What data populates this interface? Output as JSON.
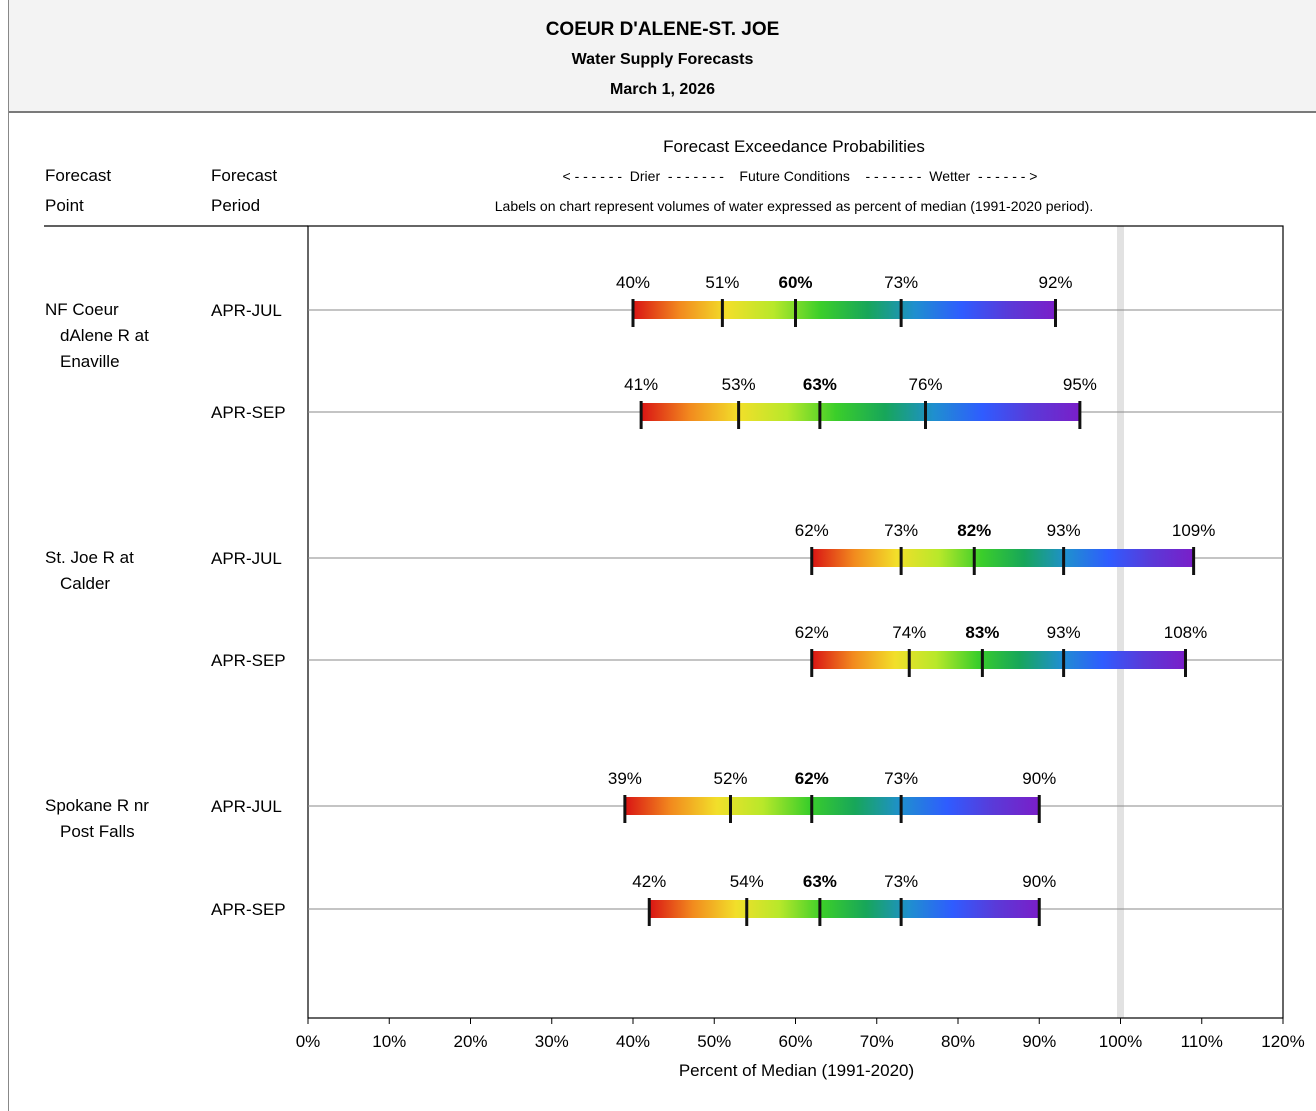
{
  "header": {
    "title": "COEUR D'ALENE-ST. JOE",
    "subtitle": "Water Supply Forecasts",
    "date": "March 1, 2026"
  },
  "columns": {
    "point_line1": "Forecast",
    "point_line2": "Point",
    "period_line1": "Forecast",
    "period_line2": "Period",
    "exceedance_title": "Forecast Exceedance Probabilities",
    "direction_legend": "< - - - - - -  Drier  - - - - - - -    Future Conditions    - - - - - - -  Wetter  - - - - - - >",
    "note": "Labels on chart represent volumes of water expressed as percent of median (1991-2020 period)."
  },
  "points": [
    {
      "name_lines": [
        "NF Coeur",
        "dAlene R at",
        "Enaville"
      ]
    },
    {
      "name_lines": [
        "St. Joe R at",
        "Calder"
      ]
    },
    {
      "name_lines": [
        "Spokane R nr",
        "Post Falls"
      ]
    }
  ],
  "chart_data": {
    "type": "bar",
    "xlabel": "Percent of Median (1991-2020)",
    "xlim": [
      0,
      120
    ],
    "xticks": [
      "0%",
      "10%",
      "20%",
      "30%",
      "40%",
      "50%",
      "60%",
      "70%",
      "80%",
      "90%",
      "100%",
      "110%",
      "120%"
    ],
    "reference_line": 100,
    "gradient_colors": [
      "#d91414",
      "#f28a1e",
      "#f2df2a",
      "#b8e82a",
      "#3bce2a",
      "#17a65a",
      "#1f8fcf",
      "#2f5cff",
      "#5a3ad8",
      "#7a1ec8"
    ],
    "rows": [
      {
        "point": "NF Coeur dAlene R at Enaville",
        "period": "APR-JUL",
        "values": [
          40,
          51,
          60,
          73,
          92
        ],
        "labels": [
          "40%",
          "51%",
          "60%",
          "73%",
          "92%"
        ]
      },
      {
        "point": "NF Coeur dAlene R at Enaville",
        "period": "APR-SEP",
        "values": [
          41,
          53,
          63,
          76,
          95
        ],
        "labels": [
          "41%",
          "53%",
          "63%",
          "76%",
          "95%"
        ]
      },
      {
        "point": "St. Joe R at Calder",
        "period": "APR-JUL",
        "values": [
          62,
          73,
          82,
          93,
          109
        ],
        "labels": [
          "62%",
          "73%",
          "82%",
          "93%",
          "109%"
        ]
      },
      {
        "point": "St. Joe R at Calder",
        "period": "APR-SEP",
        "values": [
          62,
          74,
          83,
          93,
          108
        ],
        "labels": [
          "62%",
          "74%",
          "83%",
          "93%",
          "108%"
        ]
      },
      {
        "point": "Spokane R nr Post Falls",
        "period": "APR-JUL",
        "values": [
          39,
          52,
          62,
          73,
          90
        ],
        "labels": [
          "39%",
          "52%",
          "62%",
          "73%",
          "90%"
        ]
      },
      {
        "point": "Spokane R nr Post Falls",
        "period": "APR-SEP",
        "values": [
          42,
          54,
          63,
          73,
          90
        ],
        "labels": [
          "42%",
          "54%",
          "63%",
          "73%",
          "90%"
        ]
      }
    ]
  }
}
